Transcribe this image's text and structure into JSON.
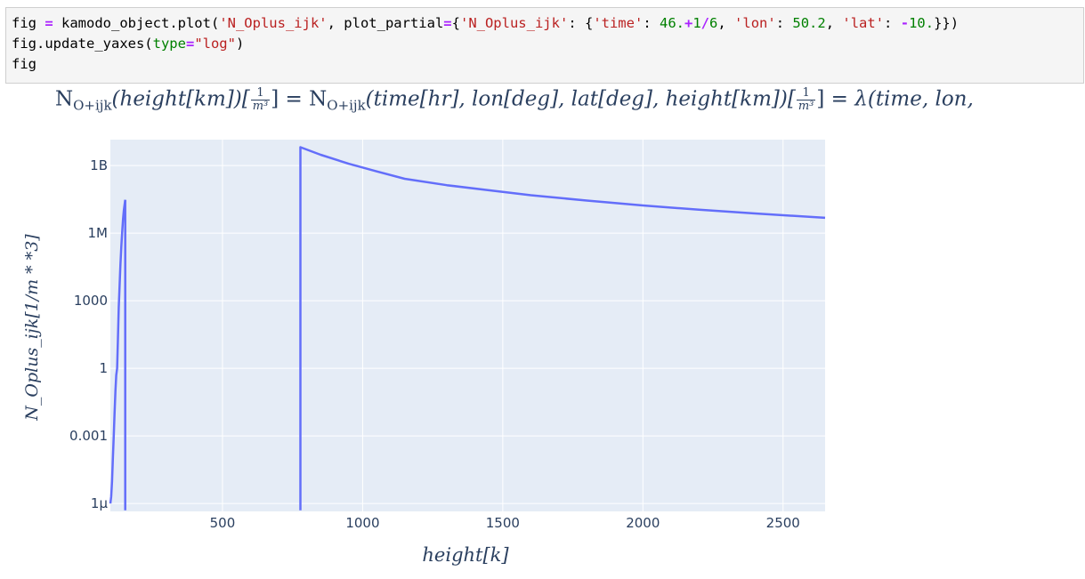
{
  "code_cell": {
    "lines": [
      [
        {
          "t": "fig ",
          "c": ""
        },
        {
          "t": "=",
          "c": "op"
        },
        {
          "t": " kamodo_object.plot(",
          "c": ""
        },
        {
          "t": "'N_Oplus_ijk'",
          "c": "str"
        },
        {
          "t": ", plot_partial",
          "c": ""
        },
        {
          "t": "=",
          "c": "op"
        },
        {
          "t": "{",
          "c": ""
        },
        {
          "t": "'N_Oplus_ijk'",
          "c": "str"
        },
        {
          "t": ": {",
          "c": ""
        },
        {
          "t": "'time'",
          "c": "str"
        },
        {
          "t": ": ",
          "c": ""
        },
        {
          "t": "46.",
          "c": "num"
        },
        {
          "t": "+",
          "c": "op"
        },
        {
          "t": "1",
          "c": "num"
        },
        {
          "t": "/",
          "c": "op"
        },
        {
          "t": "6",
          "c": "num"
        },
        {
          "t": ", ",
          "c": ""
        },
        {
          "t": "'lon'",
          "c": "str"
        },
        {
          "t": ": ",
          "c": ""
        },
        {
          "t": "50.2",
          "c": "num"
        },
        {
          "t": ", ",
          "c": ""
        },
        {
          "t": "'lat'",
          "c": "str"
        },
        {
          "t": ": ",
          "c": ""
        },
        {
          "t": "-",
          "c": "op"
        },
        {
          "t": "10.",
          "c": "num"
        },
        {
          "t": "}})",
          "c": ""
        }
      ],
      [
        {
          "t": "fig.update_yaxes(",
          "c": ""
        },
        {
          "t": "type",
          "c": "kw"
        },
        {
          "t": "=",
          "c": "op"
        },
        {
          "t": "\"log\"",
          "c": "str"
        },
        {
          "t": ")",
          "c": ""
        }
      ],
      [
        {
          "t": "fig",
          "c": ""
        }
      ]
    ]
  },
  "output_title": {
    "lhs_symbol": "N",
    "lhs_sub": "O+ijk",
    "lhs_args": "(height[km])[",
    "unit_num": "1",
    "unit_den": "m³",
    "close": "]",
    "eq1": " = ",
    "mid_symbol": "N",
    "mid_sub": "O+ijk",
    "mid_args": "(time[hr], lon[deg], lat[deg], height[km])[",
    "eq2": " = ",
    "rhs": "λ(time, lon,"
  },
  "chart_data": {
    "type": "line",
    "title": "",
    "xlabel": "height[k]",
    "ylabel": "N_Oplus_ijk[1/m * *3]",
    "y_scale": "log",
    "xlim": [
      100,
      2650
    ],
    "ylim_log10": [
      -6.35,
      10.15
    ],
    "x_ticks": [
      500,
      1000,
      1500,
      2000,
      2500
    ],
    "x_tick_labels": [
      "500",
      "1000",
      "1500",
      "2000",
      "2500"
    ],
    "y_ticks_log10": [
      -6,
      -3,
      0,
      3,
      6,
      9
    ],
    "y_tick_labels": [
      "1μ",
      "0.001",
      "1",
      "1000",
      "1M",
      "1B"
    ],
    "grid": true,
    "colors": {
      "line": "#636efa",
      "plot_bg": "#e5ecf6",
      "grid": "#ffffff",
      "text": "#2a3f5f"
    },
    "series": [
      {
        "values_note": "",
        "segments": [
          {
            "x": [
              100,
              103,
              106,
              109,
              112,
              115,
              118,
              121,
              124,
              127,
              130,
              133,
              136,
              139,
              142,
              145,
              148,
              151,
              153
            ],
            "y": [
              1e-06,
              2e-06,
              1e-05,
              0.0001,
              0.001,
              0.01,
              0.1,
              0.5,
              1.0,
              20,
              500,
              5000,
              40000,
              250000,
              1000000,
              4000000,
              10000000,
              20000000,
              30000000
            ]
          },
          {
            "x": [
              153,
              153
            ],
            "y": [
              30000000,
              5e-07
            ]
          },
          {
            "x": [
              778,
              778,
              850,
              950,
              1050,
              1150,
              1300,
              1450,
              1600,
              1800,
              2000,
              2200,
              2400,
              2650
            ],
            "y": [
              5e-07,
              6500000000,
              3000000000,
              1200000000,
              550000000,
              260000000,
              135000000,
              80000000,
              48000000,
              28000000,
              17000000,
              11000000,
              7500000,
              4800000
            ]
          }
        ]
      }
    ]
  }
}
